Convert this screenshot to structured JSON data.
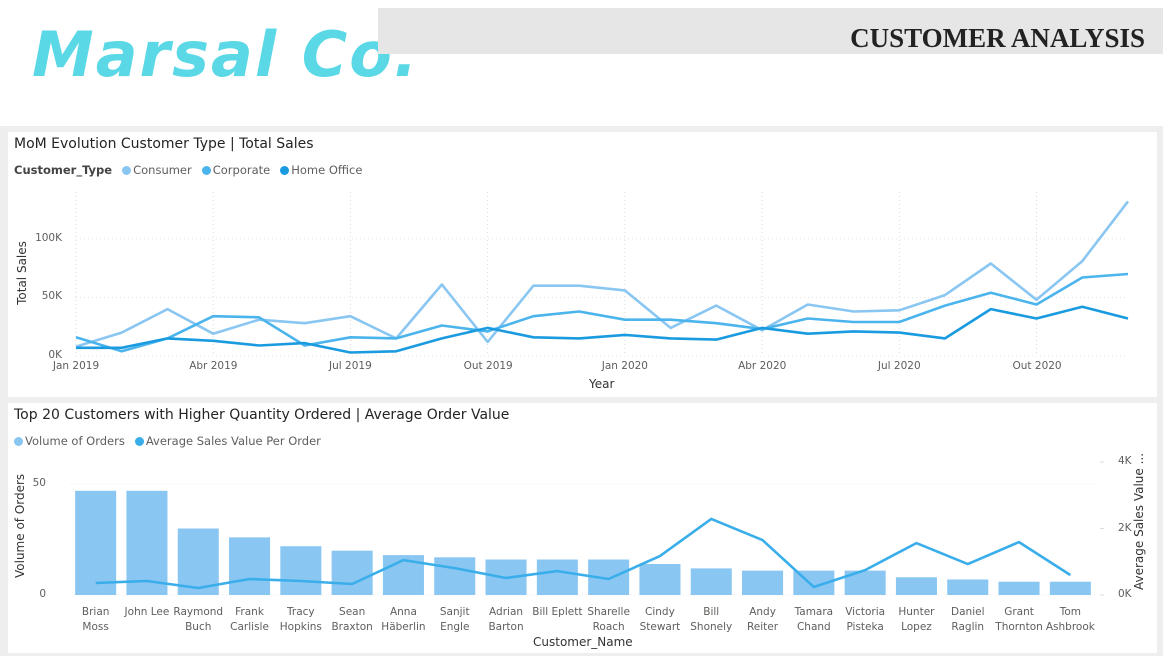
{
  "header": {
    "logo": "Marsal Co.",
    "title": "CUSTOMER ANALYSIS"
  },
  "chart_data": [
    {
      "type": "line",
      "title": "MoM Evolution Customer Type | Total Sales",
      "legend_title": "Customer_Type",
      "legend": "top-left",
      "x_label": "Year",
      "y_label": "Total Sales",
      "categories": [
        "Jan 2019",
        null,
        null,
        "Abr 2019",
        null,
        null,
        "Jul 2019",
        null,
        null,
        "Out 2019",
        null,
        null,
        "Jan 2020",
        null,
        null,
        "Abr 2020",
        null,
        null,
        "Jul 2020",
        null,
        null,
        "Out 2020",
        null,
        null
      ],
      "ylim": [
        0,
        140000
      ],
      "yticks": [
        {
          "value": 0,
          "label": "0K"
        },
        {
          "value": 50000,
          "label": "50K"
        },
        {
          "value": 100000,
          "label": "100K"
        }
      ],
      "grid": true,
      "series": [
        {
          "name": "Consumer",
          "color": "#8ac6f2",
          "values": [
            8000,
            20000,
            40000,
            19000,
            31000,
            28000,
            34000,
            15000,
            61000,
            12000,
            60000,
            60000,
            56000,
            24000,
            43000,
            22000,
            44000,
            38000,
            39000,
            52000,
            79000,
            48000,
            81000,
            132000
          ]
        },
        {
          "name": "Corporate",
          "color": "#4bb4ec",
          "values": [
            16000,
            4000,
            15000,
            34000,
            33000,
            9000,
            16000,
            15000,
            26000,
            21000,
            34000,
            38000,
            31000,
            31000,
            28000,
            23000,
            32000,
            29000,
            29000,
            43000,
            54000,
            44000,
            67000,
            70000
          ]
        },
        {
          "name": "Home Office",
          "color": "#1a9be0",
          "values": [
            7000,
            7000,
            15000,
            13000,
            9000,
            11000,
            3000,
            4000,
            15000,
            24000,
            16000,
            15000,
            18000,
            15000,
            14000,
            24000,
            19000,
            21000,
            20000,
            15000,
            40000,
            32000,
            42000,
            32000
          ]
        }
      ]
    },
    {
      "type": "combo",
      "title": "Top 20 Customers with Higher Quantity Ordered | Average Order Value",
      "legend": "top-left",
      "x_label": "Customer_Name",
      "y_label": "Volume of Orders",
      "y2_label": "Average Sales Value ...",
      "categories": [
        "Brian Moss",
        "John Lee",
        "Raymond Buch",
        "Frank Carlisle",
        "Tracy Hopkins",
        "Sean Braxton",
        "Anna Häberlin",
        "Sanjit Engle",
        "Adrian Barton",
        "Bill Eplett",
        "Sharelle Roach",
        "Cindy Stewart",
        "Bill Shonely",
        "Andy Reiter",
        "Tamara Chand",
        "Victoria Pisteka",
        "Hunter Lopez",
        "Daniel Raglin",
        "Grant Thornton",
        "Tom Ashbrook"
      ],
      "ylim": [
        0,
        60
      ],
      "yticks": [
        0,
        50
      ],
      "y2lim": [
        0,
        4000
      ],
      "y2ticks": [
        {
          "value": 0,
          "label": "0K"
        },
        {
          "value": 2000,
          "label": "2K"
        },
        {
          "value": 4000,
          "label": "4K"
        }
      ],
      "series": [
        {
          "name": "Volume of Orders",
          "type": "bar",
          "color": "#8ac6f2",
          "values": [
            47,
            47,
            30,
            26,
            22,
            20,
            18,
            17,
            16,
            16,
            16,
            14,
            12,
            11,
            11,
            11,
            8,
            7,
            6,
            6
          ]
        },
        {
          "name": "Average Sales Value Per Order",
          "type": "line",
          "axis": "y2",
          "color": "#3aaeea",
          "values": [
            360,
            420,
            210,
            480,
            420,
            330,
            1050,
            810,
            510,
            720,
            480,
            1170,
            2290,
            1650,
            240,
            750,
            1560,
            930,
            1590,
            600
          ]
        }
      ]
    }
  ]
}
